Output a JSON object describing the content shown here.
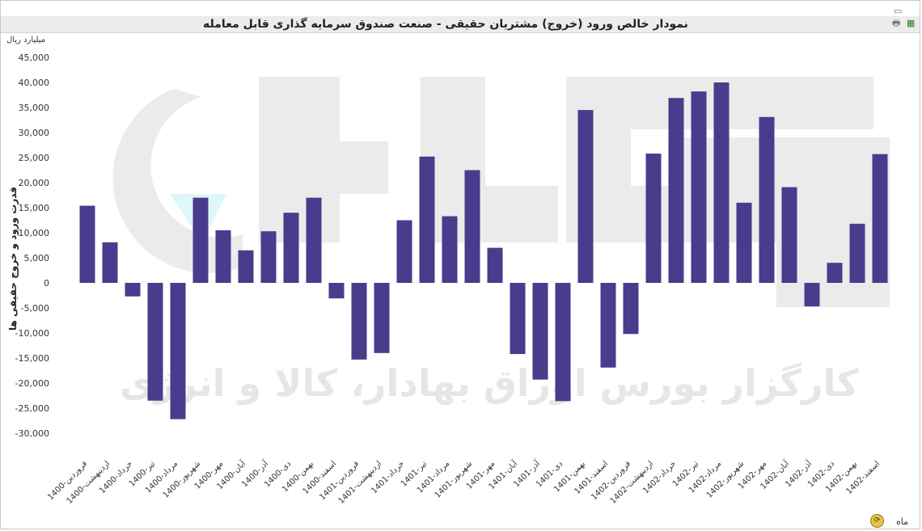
{
  "window": {
    "title": "نمودار خالص ورود (خروج) مشتریان حقیقی - صنعت صندوق سرمایه گذاری قابل معامله",
    "icons": [
      "print-icon",
      "export-excel-icon",
      "maximize-icon"
    ]
  },
  "axis": {
    "y_unit": "میلیارد ریال",
    "y_label": "قدرت ورود و خروج حقیقی ها",
    "x_label": "ماه"
  },
  "watermark": {
    "text": "کارگزار بورس اوراق بهادار، کالا و انرژی"
  },
  "colors": {
    "bar": "#4b3b8c",
    "axis_text": "#333333",
    "watermark": "#e6e6e6"
  },
  "chart_data": {
    "type": "bar",
    "ylim": [
      -30000,
      45000
    ],
    "yticks": [
      45000,
      40000,
      35000,
      30000,
      25000,
      20000,
      15000,
      10000,
      5000,
      0,
      -5000,
      -10000,
      -15000,
      -20000,
      -25000,
      -30000
    ],
    "ytick_labels": [
      "45,000",
      "40,000",
      "35,000",
      "30,000",
      "25,000",
      "20,000",
      "15,000",
      "10,000",
      "5,000",
      "0",
      "-5,000",
      "-10,000",
      "-15,000",
      "-20,000",
      "-25,000",
      "-30,000"
    ],
    "grid": false,
    "categories": [
      "1400-فروردین",
      "1400-اردیبهشت",
      "1400-خرداد",
      "1400-تیر",
      "1400-مرداد",
      "1400-شهریور",
      "1400-مهر",
      "1400-آبان",
      "1400-آذر",
      "1400-دی",
      "1400-بهمن",
      "1400-اسفند",
      "1401-فروردین",
      "1401-اردیبهشت",
      "1401-خرداد",
      "1401-تیر",
      "1401-مرداد",
      "1401-شهریور",
      "1401-مهر",
      "1401-آبان",
      "1401-آذر",
      "1401-دی",
      "1401-بهمن",
      "1401-اسفند",
      "1402-فروردین",
      "1402-اردیبهشت",
      "1402-خرداد",
      "1402-تیر",
      "1402-مرداد",
      "1402-شهریور",
      "1402-مهر",
      "1402-آبان",
      "1402-آذر",
      "1402-دی",
      "1402-بهمن",
      "1402-اسفند"
    ],
    "values": [
      15400,
      8100,
      -2700,
      -23500,
      -27200,
      17000,
      10500,
      6500,
      10300,
      14000,
      17000,
      -3100,
      -15300,
      -14000,
      12500,
      25200,
      13300,
      22500,
      7000,
      -14200,
      -19300,
      -23600,
      34500,
      -16900,
      -10200,
      25800,
      36900,
      38200,
      40000,
      16000,
      33100,
      19100,
      -4700,
      4000,
      11800,
      25700
    ]
  }
}
